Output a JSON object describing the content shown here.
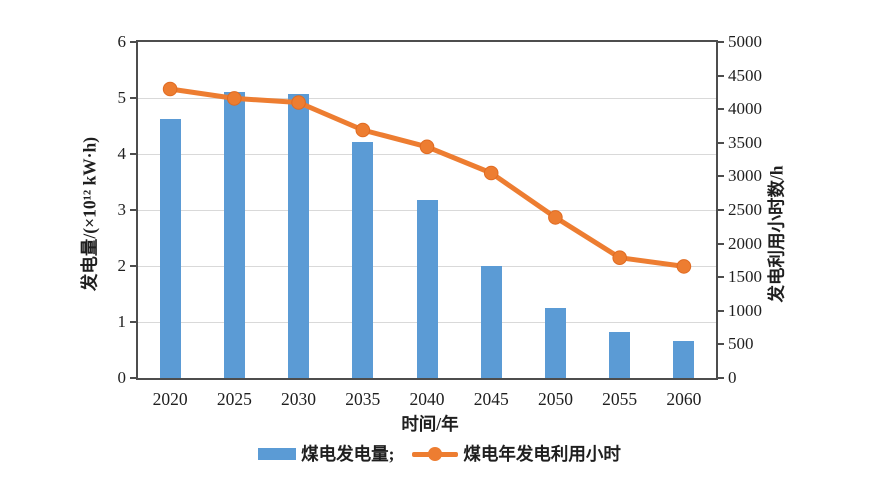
{
  "chart_data": {
    "type": "combo-bar-line",
    "title": "",
    "categories": [
      "2020",
      "2025",
      "2030",
      "2035",
      "2040",
      "2045",
      "2050",
      "2055",
      "2060"
    ],
    "series": [
      {
        "name": "煤电发电量",
        "type": "bar",
        "yaxis": "left",
        "color": "#5b9bd5",
        "values": [
          4.63,
          5.1,
          5.08,
          4.22,
          3.18,
          2.0,
          1.25,
          0.83,
          0.66
        ]
      },
      {
        "name": "煤电年发电利用小时",
        "type": "line",
        "yaxis": "right",
        "color": "#ed7d31",
        "values": [
          4300,
          4160,
          4100,
          3690,
          3440,
          3050,
          2390,
          1790,
          1660
        ]
      }
    ],
    "x_axis": {
      "label": "时间/年"
    },
    "left_axis": {
      "label": "发电量/(×10¹² kW·h)",
      "min": 0,
      "max": 6,
      "step": 1
    },
    "right_axis": {
      "label": "发电利用小时数/h",
      "min": 0,
      "max": 5000,
      "step": 500
    },
    "grid": true,
    "legend_position": "bottom"
  },
  "legend": {
    "bar_label": "煤电发电量;",
    "line_label": "煤电年发电利用小时"
  },
  "colors": {
    "bar": "#5b9bd5",
    "line": "#ed7d31",
    "grid": "#d9d9d9",
    "axis": "#4d4d4d",
    "text": "#1f1f1f"
  }
}
